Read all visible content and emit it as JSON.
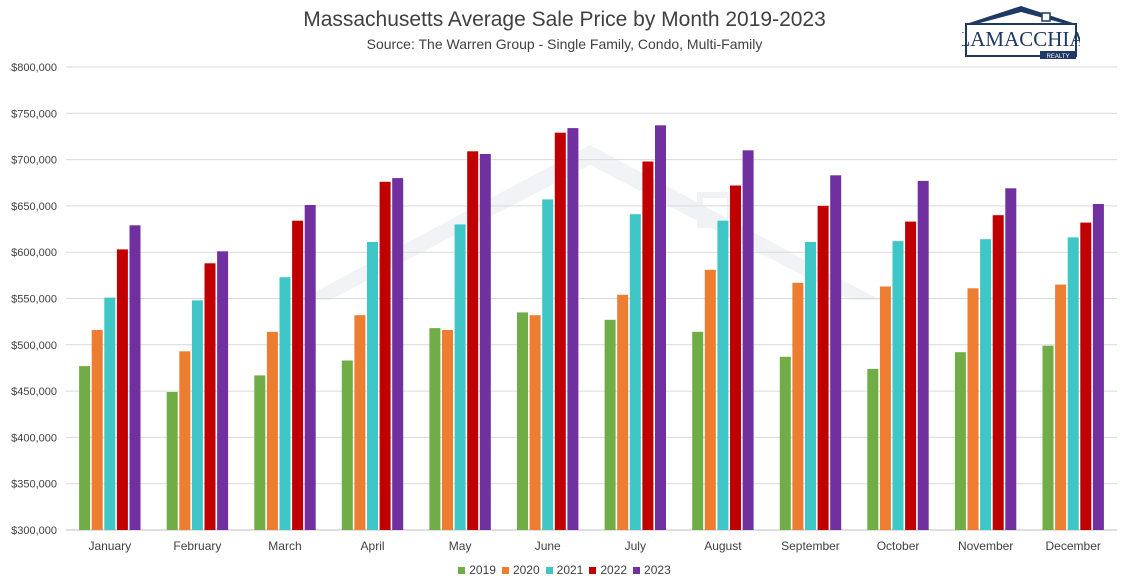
{
  "header": {
    "title": "Massachusetts Average Sale Price by Month 2019-2023",
    "subtitle": "Source: The Warren Group - Single Family, Condo, Multi-Family"
  },
  "logo": {
    "brand": "LAMACCHIA",
    "tagline": "REALTY"
  },
  "colors": {
    "2019": "#70ad47",
    "2020": "#ed7d31",
    "2021": "#3fc6c6",
    "2022": "#c00000",
    "2023": "#7030a0",
    "grid": "#d9d9d9",
    "logo_navy": "#1f3864"
  },
  "chart_data": {
    "type": "bar",
    "title": "Massachusetts Average Sale Price by Month 2019-2023",
    "subtitle": "Source: The Warren Group - Single Family, Condo, Multi-Family",
    "xlabel": "",
    "ylabel": "",
    "ylim": [
      300000,
      800000
    ],
    "yticks": [
      300000,
      350000,
      400000,
      450000,
      500000,
      550000,
      600000,
      650000,
      700000,
      750000,
      800000
    ],
    "ytick_labels": [
      "$300,000",
      "$350,000",
      "$400,000",
      "$450,000",
      "$500,000",
      "$550,000",
      "$600,000",
      "$650,000",
      "$700,000",
      "$750,000",
      "$800,000"
    ],
    "grid": true,
    "legend_position": "bottom",
    "categories": [
      "January",
      "February",
      "March",
      "April",
      "May",
      "June",
      "July",
      "August",
      "September",
      "October",
      "November",
      "December"
    ],
    "series": [
      {
        "name": "2019",
        "values": [
          477000,
          449000,
          467000,
          483000,
          518000,
          535000,
          527000,
          514000,
          487000,
          474000,
          492000,
          499000
        ]
      },
      {
        "name": "2020",
        "values": [
          516000,
          493000,
          514000,
          532000,
          516000,
          532000,
          554000,
          581000,
          567000,
          563000,
          561000,
          565000
        ]
      },
      {
        "name": "2021",
        "values": [
          551000,
          548000,
          573000,
          611000,
          630000,
          657000,
          641000,
          634000,
          611000,
          612000,
          614000,
          616000
        ]
      },
      {
        "name": "2022",
        "values": [
          603000,
          588000,
          634000,
          676000,
          709000,
          729000,
          698000,
          672000,
          650000,
          633000,
          640000,
          632000
        ]
      },
      {
        "name": "2023",
        "values": [
          629000,
          601000,
          651000,
          680000,
          706000,
          734000,
          737000,
          710000,
          683000,
          677000,
          669000,
          652000
        ]
      }
    ]
  }
}
